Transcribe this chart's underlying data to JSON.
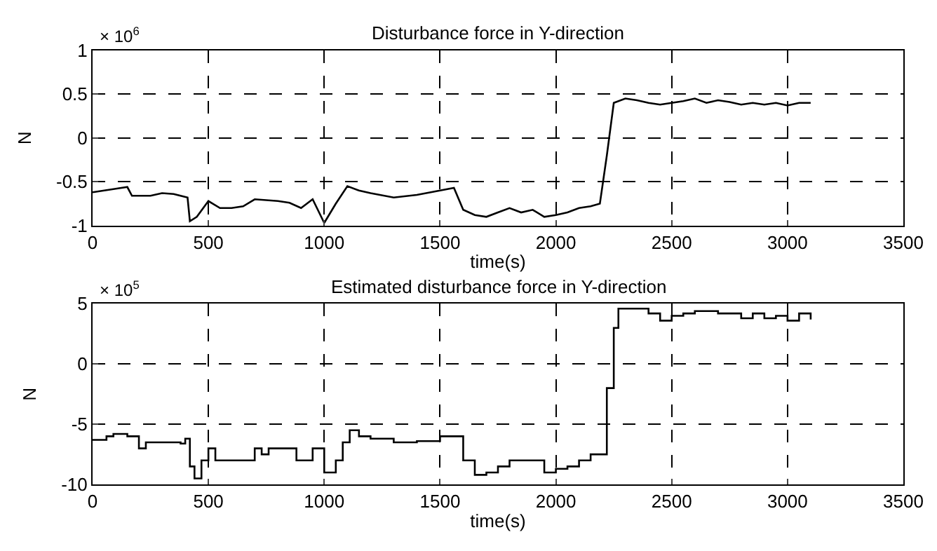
{
  "chart_data": [
    {
      "type": "line",
      "title": "Disturbance force in Y-direction",
      "xlabel": "time(s)",
      "ylabel": "N",
      "annotations": [
        "× 10$^{6}$"
      ],
      "xlim": [
        0,
        3500
      ],
      "xticks": [
        0,
        500,
        1000,
        1500,
        2000,
        2500,
        3000,
        3500
      ],
      "ylim": [
        -1,
        1
      ],
      "yticks": [
        -1,
        -0.5,
        0,
        0.5,
        1
      ],
      "grid": true,
      "line_style": "solid",
      "series": [
        {
          "color": "#000000",
          "x": [
            0,
            50,
            100,
            150,
            170,
            250,
            300,
            350,
            410,
            420,
            450,
            500,
            550,
            600,
            650,
            700,
            800,
            850,
            900,
            950,
            1000,
            1050,
            1100,
            1150,
            1200,
            1300,
            1400,
            1500,
            1560,
            1600,
            1650,
            1700,
            1750,
            1800,
            1850,
            1900,
            1950,
            2000,
            2050,
            2100,
            2150,
            2190,
            2220,
            2250,
            2300,
            2350,
            2400,
            2450,
            2500,
            2550,
            2600,
            2650,
            2700,
            2750,
            2800,
            2850,
            2900,
            2950,
            3000,
            3050,
            3100
          ],
          "values": [
            -0.62,
            -0.6,
            -0.58,
            -0.56,
            -0.66,
            -0.66,
            -0.63,
            -0.64,
            -0.68,
            -0.95,
            -0.9,
            -0.72,
            -0.8,
            -0.8,
            -0.78,
            -0.7,
            -0.72,
            -0.74,
            -0.8,
            -0.7,
            -0.97,
            -0.75,
            -0.55,
            -0.6,
            -0.63,
            -0.68,
            -0.65,
            -0.6,
            -0.57,
            -0.82,
            -0.88,
            -0.9,
            -0.85,
            -0.8,
            -0.85,
            -0.82,
            -0.9,
            -0.88,
            -0.85,
            -0.8,
            -0.78,
            -0.75,
            -0.2,
            0.4,
            0.45,
            0.43,
            0.4,
            0.38,
            0.4,
            0.42,
            0.45,
            0.4,
            0.43,
            0.41,
            0.38,
            0.4,
            0.38,
            0.4,
            0.37,
            0.4,
            0.4
          ]
        }
      ]
    },
    {
      "type": "step",
      "title": "Estimated disturbance force in Y-direction",
      "xlabel": "time(s)",
      "ylabel": "N",
      "annotations": [
        "× 10$^{5}$"
      ],
      "xlim": [
        0,
        3500
      ],
      "xticks": [
        0,
        500,
        1000,
        1500,
        2000,
        2500,
        3000,
        3500
      ],
      "ylim": [
        -10,
        5
      ],
      "yticks": [
        -10,
        -5,
        0,
        5
      ],
      "grid": true,
      "line_style": "solid",
      "series": [
        {
          "color": "#000000",
          "x": [
            0,
            60,
            90,
            150,
            200,
            230,
            380,
            400,
            420,
            440,
            470,
            500,
            530,
            680,
            700,
            730,
            760,
            850,
            880,
            950,
            1000,
            1050,
            1080,
            1110,
            1150,
            1200,
            1300,
            1400,
            1500,
            1560,
            1600,
            1650,
            1700,
            1750,
            1800,
            1900,
            1950,
            2000,
            2050,
            2100,
            2150,
            2190,
            2220,
            2250,
            2270,
            2320,
            2400,
            2450,
            2500,
            2550,
            2600,
            2700,
            2800,
            2850,
            2900,
            2950,
            3000,
            3050,
            3100
          ],
          "values": [
            -6.3,
            -6,
            -5.8,
            -6,
            -7,
            -6.5,
            -6.6,
            -6.2,
            -8.5,
            -9.5,
            -8,
            -7,
            -8,
            -8,
            -7,
            -7.5,
            -7,
            -7,
            -8,
            -7,
            -9,
            -8,
            -6.5,
            -5.5,
            -6,
            -6.2,
            -6.5,
            -6.4,
            -6,
            -6,
            -8,
            -9.2,
            -9,
            -8.5,
            -8,
            -8,
            -9,
            -8.7,
            -8.5,
            -8,
            -7.5,
            -7.5,
            -2,
            3,
            4.6,
            4.6,
            4.2,
            3.6,
            4,
            4.2,
            4.4,
            4.2,
            3.8,
            4.2,
            3.8,
            4,
            3.6,
            4.2,
            3.7
          ]
        }
      ]
    }
  ]
}
